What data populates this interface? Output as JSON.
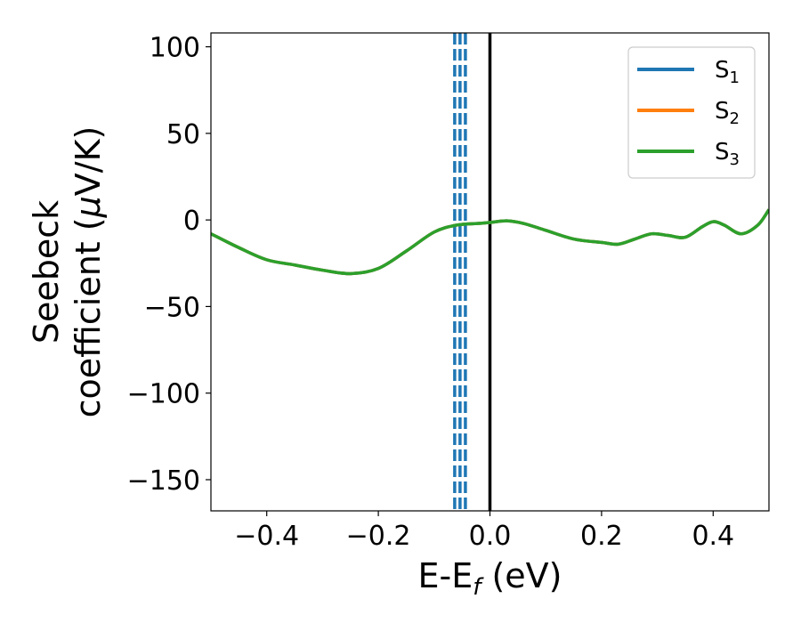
{
  "chart_data": {
    "type": "line",
    "xlabel": {
      "main": "E-E",
      "sub": "f",
      "suffix": " (eV)"
    },
    "ylabel": {
      "line1": "Seebeck",
      "line2_prefix": "coefficient  (",
      "mu": "μ",
      "line2_suffix": "V/K)"
    },
    "xlim": [
      -0.5,
      0.5
    ],
    "ylim": [
      -168,
      108
    ],
    "x_ticks": [
      -0.4,
      -0.2,
      0.0,
      0.2,
      0.4
    ],
    "x_tick_labels": [
      "−0.4",
      "−0.2",
      "0.0",
      "0.2",
      "0.4"
    ],
    "y_ticks": [
      100,
      50,
      0,
      -50,
      -100,
      -150
    ],
    "y_tick_labels": [
      "100",
      "50",
      "0",
      "−50",
      "−100",
      "−150"
    ],
    "grid": false,
    "legend_position": "top-right",
    "series": [
      {
        "name": "S",
        "sub": "1",
        "color": "#1f77b4",
        "x": [
          -0.5,
          -0.45,
          -0.4,
          -0.35,
          -0.3,
          -0.25,
          -0.2,
          -0.15,
          -0.1,
          -0.06,
          -0.02,
          0.0,
          0.03,
          0.06,
          0.1,
          0.15,
          0.2,
          0.23,
          0.26,
          0.29,
          0.32,
          0.35,
          0.38,
          0.4,
          0.42,
          0.45,
          0.48,
          0.5
        ],
        "y": [
          -8,
          -16,
          -23,
          -26,
          -29,
          -31,
          -28,
          -18,
          -7,
          -3,
          -2,
          -1.5,
          -0.5,
          -2,
          -6,
          -11,
          -13,
          -14,
          -11,
          -8,
          -9,
          -10,
          -4,
          -1,
          -3,
          -8,
          -3,
          6
        ]
      },
      {
        "name": "S",
        "sub": "2",
        "color": "#ff7f0e",
        "x": [
          -0.5,
          -0.45,
          -0.4,
          -0.35,
          -0.3,
          -0.25,
          -0.2,
          -0.15,
          -0.1,
          -0.06,
          -0.02,
          0.0,
          0.03,
          0.06,
          0.1,
          0.15,
          0.2,
          0.23,
          0.26,
          0.29,
          0.32,
          0.35,
          0.38,
          0.4,
          0.42,
          0.45,
          0.48,
          0.5
        ],
        "y": [
          -8,
          -16,
          -23,
          -26,
          -29,
          -31,
          -28,
          -18,
          -7,
          -3,
          -2,
          -1.5,
          -0.5,
          -2,
          -6,
          -11,
          -13,
          -14,
          -11,
          -8,
          -9,
          -10,
          -4,
          -1,
          -3,
          -8,
          -3,
          6
        ]
      },
      {
        "name": "S",
        "sub": "3",
        "color": "#2ca02c",
        "x": [
          -0.5,
          -0.45,
          -0.4,
          -0.35,
          -0.3,
          -0.25,
          -0.2,
          -0.15,
          -0.1,
          -0.06,
          -0.02,
          0.0,
          0.03,
          0.06,
          0.1,
          0.15,
          0.2,
          0.23,
          0.26,
          0.29,
          0.32,
          0.35,
          0.38,
          0.4,
          0.42,
          0.45,
          0.48,
          0.5
        ],
        "y": [
          -8,
          -16,
          -23,
          -26,
          -29,
          -31,
          -28,
          -18,
          -7,
          -3,
          -2,
          -1.5,
          -0.5,
          -2,
          -6,
          -11,
          -13,
          -14,
          -11,
          -8,
          -9,
          -10,
          -4,
          -1,
          -3,
          -8,
          -3,
          6
        ]
      }
    ],
    "vertical_lines": [
      {
        "x": -0.0632,
        "style": "dashed",
        "color": "#1f77b4"
      },
      {
        "x": -0.0536,
        "style": "dashed",
        "color": "#1f77b4"
      },
      {
        "x": -0.044,
        "style": "dashed",
        "color": "#1f77b4"
      },
      {
        "x": 0.0,
        "style": "solid",
        "color": "#000000"
      }
    ]
  }
}
